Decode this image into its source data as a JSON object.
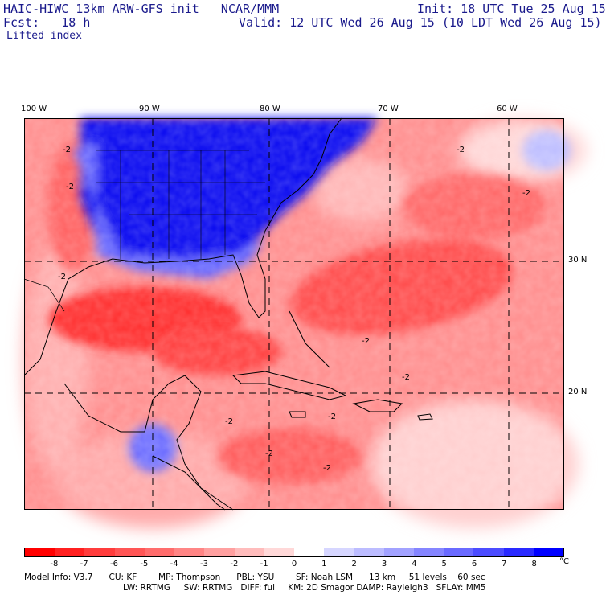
{
  "header": {
    "line1_left": "HAIC-HIWC 13km ARW-GFS init   NCAR/MMM",
    "line1_right": "Init: 18 UTC Tue 25 Aug 15",
    "line2_left": "Fcst:   18 h",
    "line2_right": "Valid: 12 UTC Wed 26 Aug 15 (10 LDT Wed 26 Aug 15)",
    "field_name": "Lifted index"
  },
  "map": {
    "longitude_labels": [
      "100 W",
      "90 W",
      "80 W",
      "70 W",
      "60 W"
    ],
    "latitude_labels": [
      "30 N",
      "20 N"
    ],
    "contour_labels": [
      "-2",
      "-2",
      "-2",
      "-2",
      "-2",
      "-2",
      "-2",
      "-2",
      "-2",
      "-2",
      "-2"
    ],
    "negative_color": "#ff0000",
    "positive_color": "#0000ff"
  },
  "colorbar": {
    "unit": "°C",
    "tick_labels": [
      "-8",
      "-7",
      "-6",
      "-5",
      "-4",
      "-3",
      "-2",
      "-1",
      "0",
      "1",
      "2",
      "3",
      "4",
      "5",
      "6",
      "7",
      "8"
    ],
    "colors": [
      "#ff0000",
      "#ff2020",
      "#ff3c3c",
      "#ff5555",
      "#ff6c6c",
      "#ff8585",
      "#ffa0a0",
      "#ffbcbc",
      "#ffd8d8",
      "#ffffff",
      "#d6d6ff",
      "#bcbcff",
      "#a2a2ff",
      "#8585ff",
      "#6a6aff",
      "#4c4cff",
      "#2a2aff",
      "#0000ff"
    ]
  },
  "model_info": {
    "line1": "Model Info: V3.7      CU: KF        MP: Thompson      PBL: YSU        SF: Noah LSM      13 km     51 levels    60 sec",
    "line2": "LW: RRTMG     SW: RRTMG   DIFF: full    KM: 2D Smagor DAMP: Rayleigh3   SFLAY: MM5"
  }
}
